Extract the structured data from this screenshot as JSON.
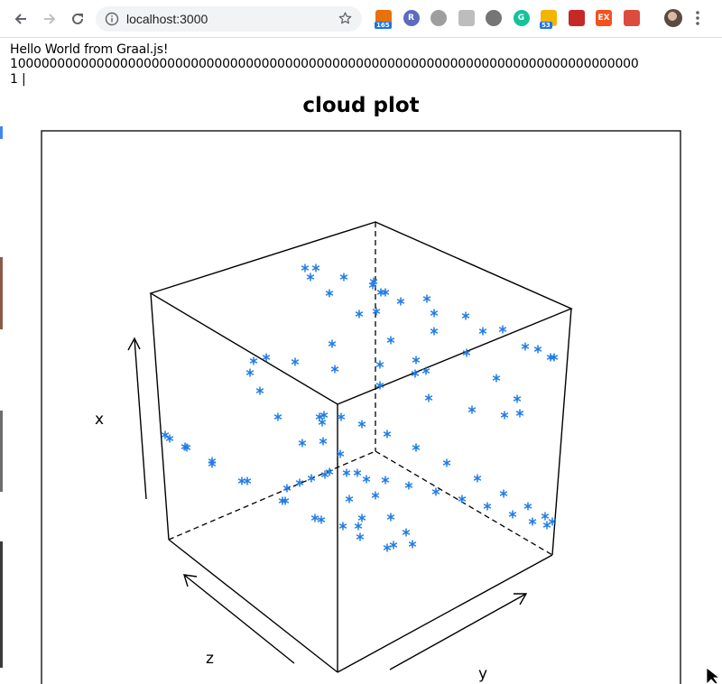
{
  "browser": {
    "url": "localhost:3000",
    "extensions": [
      {
        "name": "rss-extension-icon",
        "label": "",
        "badge": "165",
        "color": "#e8710a"
      },
      {
        "name": "r-extension-icon",
        "label": "R",
        "badge": "",
        "color": "#5c6bc0"
      },
      {
        "name": "gear-extension-icon",
        "label": "",
        "badge": "",
        "color": "#9e9e9e"
      },
      {
        "name": "window-extension-icon",
        "label": "",
        "badge": "",
        "color": "#bdbdbd"
      },
      {
        "name": "camera-extension-icon",
        "label": "",
        "badge": "",
        "color": "#757575"
      },
      {
        "name": "grammarly-extension-icon",
        "label": "G",
        "badge": "",
        "color": "#15c39a"
      },
      {
        "name": "puzzle-extension-icon",
        "label": "",
        "badge": "53",
        "color": "#f4b400"
      },
      {
        "name": "box-extension-icon",
        "label": "",
        "badge": "",
        "color": "#c62828"
      },
      {
        "name": "ex-extension-icon",
        "label": "EX",
        "badge": "",
        "color": "#f4511e"
      },
      {
        "name": "todoist-extension-icon",
        "label": "",
        "badge": "",
        "color": "#db4c3f"
      }
    ]
  },
  "page": {
    "line1": "Hello World from Graal.js!",
    "line2": "10000000000000000000000000000000000000000000000000000000000000000000000000000000",
    "line3": "1 |"
  },
  "chart_data": {
    "type": "scatter",
    "title": "cloud plot",
    "xlabel": "x",
    "ylabel": "y",
    "zlabel": "z",
    "marker": "*",
    "color": "#1e7be6",
    "points_screen_projection": [
      [
        338,
        297
      ],
      [
        350,
        297
      ],
      [
        344,
        307
      ],
      [
        381,
        307
      ],
      [
        365,
        325
      ],
      [
        414,
        312
      ],
      [
        413,
        316
      ],
      [
        422,
        324
      ],
      [
        427,
        324
      ],
      [
        417,
        345
      ],
      [
        444,
        334
      ],
      [
        473,
        331
      ],
      [
        481,
        347
      ],
      [
        516,
        350
      ],
      [
        535,
        367
      ],
      [
        557,
        365
      ],
      [
        398,
        348
      ],
      [
        481,
        367
      ],
      [
        433,
        377
      ],
      [
        368,
        381
      ],
      [
        295,
        396
      ],
      [
        281,
        400
      ],
      [
        327,
        401
      ],
      [
        371,
        409
      ],
      [
        421,
        404
      ],
      [
        461,
        399
      ],
      [
        517,
        391
      ],
      [
        582,
        384
      ],
      [
        596,
        387
      ],
      [
        610,
        396
      ],
      [
        614,
        396
      ],
      [
        277,
        413
      ],
      [
        460,
        414
      ],
      [
        472,
        411
      ],
      [
        550,
        419
      ],
      [
        421,
        427
      ],
      [
        288,
        433
      ],
      [
        475,
        441
      ],
      [
        573,
        442
      ],
      [
        523,
        454
      ],
      [
        559,
        460
      ],
      [
        576,
        458
      ],
      [
        354,
        462
      ],
      [
        359,
        460
      ],
      [
        308,
        462
      ],
      [
        378,
        462
      ],
      [
        357,
        468
      ],
      [
        401,
        470
      ],
      [
        183,
        482
      ],
      [
        188,
        486
      ],
      [
        205,
        495
      ],
      [
        207,
        496
      ],
      [
        235,
        511
      ],
      [
        235,
        514
      ],
      [
        429,
        481
      ],
      [
        461,
        496
      ],
      [
        335,
        491
      ],
      [
        358,
        489
      ],
      [
        377,
        503
      ],
      [
        495,
        513
      ],
      [
        529,
        530
      ],
      [
        268,
        533
      ],
      [
        274,
        533
      ],
      [
        318,
        541
      ],
      [
        332,
        535
      ],
      [
        345,
        530
      ],
      [
        360,
        526
      ],
      [
        365,
        523
      ],
      [
        384,
        524
      ],
      [
        396,
        524
      ],
      [
        406,
        531
      ],
      [
        427,
        532
      ],
      [
        453,
        538
      ],
      [
        483,
        545
      ],
      [
        512,
        553
      ],
      [
        540,
        561
      ],
      [
        558,
        547
      ],
      [
        585,
        561
      ],
      [
        313,
        555
      ],
      [
        316,
        555
      ],
      [
        387,
        553
      ],
      [
        416,
        549
      ],
      [
        433,
        573
      ],
      [
        349,
        574
      ],
      [
        356,
        576
      ],
      [
        401,
        574
      ],
      [
        380,
        583
      ],
      [
        397,
        583
      ],
      [
        450,
        590
      ],
      [
        399,
        595
      ],
      [
        436,
        604
      ],
      [
        429,
        607
      ],
      [
        457,
        603
      ],
      [
        568,
        570
      ],
      [
        590,
        578
      ],
      [
        604,
        572
      ],
      [
        606,
        582
      ],
      [
        612,
        578
      ]
    ]
  }
}
